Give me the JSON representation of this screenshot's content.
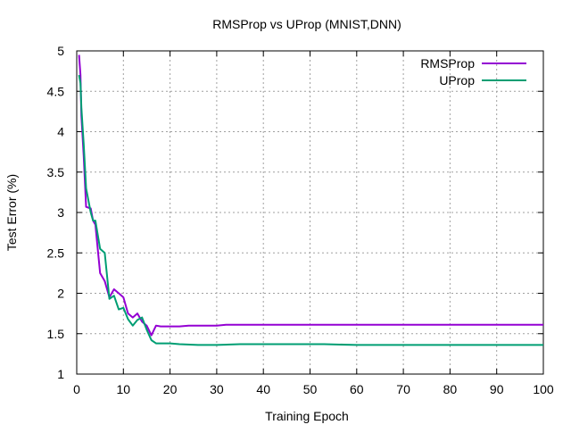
{
  "chart_data": {
    "type": "line",
    "title": "RMSProp vs UProp (MNIST,DNN)",
    "xlabel": "Training Epoch",
    "ylabel": "Test Error (%)",
    "xlim": [
      0,
      100
    ],
    "ylim": [
      1,
      5
    ],
    "xticks": [
      0,
      10,
      20,
      30,
      40,
      50,
      60,
      70,
      80,
      90,
      100
    ],
    "yticks": [
      1,
      1.5,
      2,
      2.5,
      3,
      3.5,
      4,
      4.5,
      5
    ],
    "ytick_labels": [
      "1",
      "1.5",
      "2",
      "2.5",
      "3",
      "3.5",
      "4",
      "4.5",
      "5"
    ],
    "grid": true,
    "legend_position": "top-right",
    "series": [
      {
        "name": "RMSProp",
        "color": "#9400d3",
        "x": [
          0.5,
          0.8,
          1,
          1.5,
          2,
          3,
          3.5,
          4,
          5,
          6,
          7,
          8,
          9,
          10,
          11,
          12,
          13,
          14,
          15,
          16,
          17,
          18,
          20,
          22,
          24,
          30,
          32,
          40,
          50,
          60,
          70,
          80,
          90,
          100
        ],
        "y": [
          4.95,
          4.7,
          4.2,
          3.7,
          3.07,
          3.05,
          2.9,
          2.85,
          2.25,
          2.15,
          1.95,
          2.05,
          2.0,
          1.95,
          1.75,
          1.7,
          1.75,
          1.65,
          1.6,
          1.48,
          1.6,
          1.59,
          1.59,
          1.59,
          1.6,
          1.6,
          1.61,
          1.61,
          1.61,
          1.61,
          1.61,
          1.61,
          1.61,
          1.61
        ]
      },
      {
        "name": "UProp",
        "color": "#009e73",
        "x": [
          0.5,
          0.8,
          1,
          1.5,
          2,
          3,
          3.5,
          4,
          5,
          6,
          7,
          8,
          9,
          10,
          11,
          12,
          13,
          14,
          15,
          16,
          17,
          18,
          20,
          22,
          26,
          30,
          35,
          40,
          53,
          60,
          70,
          80,
          90,
          100
        ],
        "y": [
          4.7,
          4.6,
          4.3,
          3.85,
          3.3,
          3.0,
          2.9,
          2.9,
          2.55,
          2.5,
          1.93,
          1.97,
          1.8,
          1.82,
          1.68,
          1.6,
          1.67,
          1.7,
          1.55,
          1.42,
          1.38,
          1.38,
          1.38,
          1.37,
          1.36,
          1.36,
          1.37,
          1.37,
          1.37,
          1.36,
          1.36,
          1.36,
          1.36,
          1.36
        ]
      }
    ]
  }
}
